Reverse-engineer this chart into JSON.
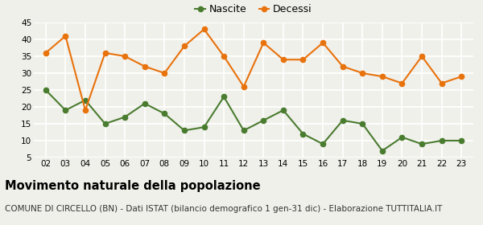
{
  "years": [
    2,
    3,
    4,
    5,
    6,
    7,
    8,
    9,
    10,
    11,
    12,
    13,
    14,
    15,
    16,
    17,
    18,
    19,
    20,
    21,
    22,
    23
  ],
  "nascite": [
    25,
    19,
    22,
    15,
    17,
    21,
    18,
    13,
    14,
    23,
    13,
    16,
    19,
    12,
    9,
    16,
    15,
    7,
    11,
    9,
    10,
    10
  ],
  "decessi": [
    36,
    41,
    19,
    36,
    35,
    32,
    30,
    38,
    43,
    35,
    26,
    39,
    34,
    34,
    39,
    32,
    30,
    29,
    27,
    35,
    27,
    29
  ],
  "nascite_color": "#4a7c2f",
  "decessi_color": "#e8720c",
  "background_color": "#f0f0eb",
  "grid_color": "#ffffff",
  "ylim": [
    5,
    45
  ],
  "yticks": [
    5,
    10,
    15,
    20,
    25,
    30,
    35,
    40,
    45
  ],
  "title": "Movimento naturale della popolazione",
  "subtitle": "COMUNE DI CIRCELLO (BN) - Dati ISTAT (bilancio demografico 1 gen-31 dic) - Elaborazione TUTTITALIA.IT",
  "legend_nascite": "Nascite",
  "legend_decessi": "Decessi",
  "title_fontsize": 10.5,
  "subtitle_fontsize": 7.5,
  "legend_fontsize": 9,
  "tick_fontsize": 7.5,
  "marker_size": 4.5,
  "line_width": 1.5
}
